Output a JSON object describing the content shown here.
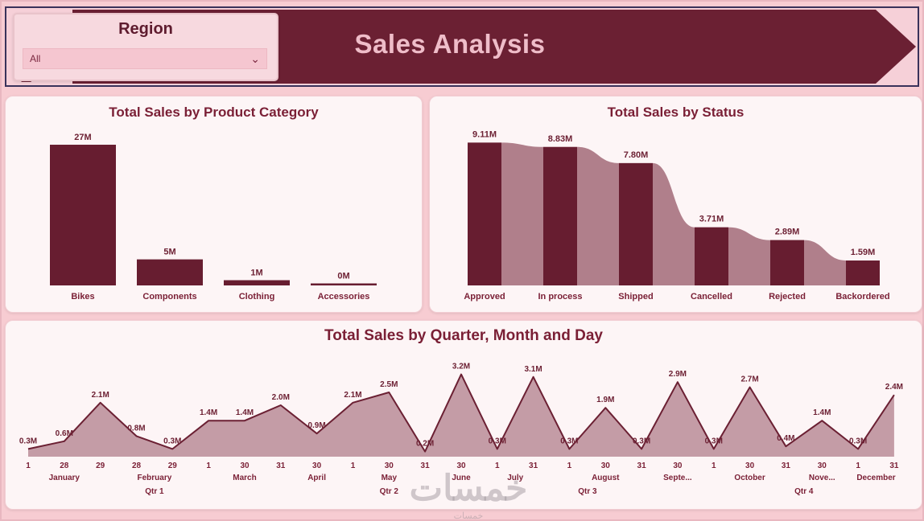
{
  "page": {
    "watermark": "خمسات"
  },
  "header": {
    "title": "Sales Analysis",
    "slicer": {
      "label": "Region",
      "value": "All",
      "chevron_icon": "⌄"
    }
  },
  "colors": {
    "bar": "#671d30",
    "funnel_area": "#b07f8b",
    "area_fill": "#c49ca6",
    "line": "#6b2033",
    "title": "#7a1f35",
    "banner": "#6b2033",
    "banner_text": "#efbdc9"
  },
  "chart_data": [
    {
      "id": "category",
      "type": "bar",
      "title": "Total Sales by Product Category",
      "categories": [
        "Bikes",
        "Components",
        "Clothing",
        "Accessories"
      ],
      "values": [
        27,
        5,
        1,
        0
      ],
      "labels": [
        "27M",
        "5M",
        "1M",
        "0M"
      ],
      "ylabel": "",
      "xlabel": "",
      "ylim": [
        0,
        27
      ],
      "grid": false,
      "legend": "none"
    },
    {
      "id": "status",
      "type": "area",
      "subtype": "funnel-steps-with-bars",
      "title": "Total Sales by Status",
      "categories": [
        "Approved",
        "In process",
        "Shipped",
        "Cancelled",
        "Rejected",
        "Backordered"
      ],
      "values": [
        9.11,
        8.83,
        7.8,
        3.71,
        2.89,
        1.59
      ],
      "labels": [
        "9.11M",
        "8.83M",
        "7.80M",
        "3.71M",
        "2.89M",
        "1.59M"
      ],
      "ylabel": "",
      "xlabel": "",
      "ylim": [
        0,
        9.11
      ],
      "grid": false,
      "legend": "none"
    },
    {
      "id": "daily",
      "type": "area",
      "title": "Total Sales by Quarter, Month and Day",
      "x": [
        "1",
        "28",
        "29",
        "28",
        "29",
        "1",
        "30",
        "31",
        "30",
        "1",
        "30",
        "31",
        "30",
        "1",
        "31",
        "1",
        "30",
        "31",
        "30",
        "1",
        "30",
        "31",
        "30",
        "1",
        "31"
      ],
      "values": [
        0.3,
        0.6,
        2.1,
        0.8,
        0.3,
        1.4,
        1.4,
        2.0,
        0.9,
        2.1,
        2.5,
        0.2,
        3.2,
        0.3,
        3.1,
        0.3,
        1.9,
        0.3,
        2.9,
        0.3,
        2.7,
        0.4,
        1.4,
        0.3,
        2.4
      ],
      "labels": [
        "0.3M",
        "0.6M",
        "2.1M",
        "0.8M",
        "0.3M",
        "1.4M",
        "1.4M",
        "2.0M",
        "0.9M",
        "2.1M",
        "2.5M",
        "0.2M",
        "3.2M",
        "0.3M",
        "3.1M",
        "0.3M",
        "1.9M",
        "0.3M",
        "2.9M",
        "0.3M",
        "2.7M",
        "0.4M",
        "1.4M",
        "0.3M",
        "2.4M"
      ],
      "months": [
        {
          "label": "January",
          "pos": 1
        },
        {
          "label": "February",
          "pos": 3.5
        },
        {
          "label": "March",
          "pos": 6
        },
        {
          "label": "April",
          "pos": 8
        },
        {
          "label": "May",
          "pos": 10
        },
        {
          "label": "June",
          "pos": 12
        },
        {
          "label": "July",
          "pos": 13.5
        },
        {
          "label": "August",
          "pos": 16
        },
        {
          "label": "Septe...",
          "pos": 18
        },
        {
          "label": "October",
          "pos": 20
        },
        {
          "label": "Nove...",
          "pos": 22
        },
        {
          "label": "December",
          "pos": 23.5
        }
      ],
      "quarters": [
        {
          "label": "Qtr 1",
          "pos": 3.5
        },
        {
          "label": "Qtr 2",
          "pos": 10
        },
        {
          "label": "Qtr 3",
          "pos": 15.5
        },
        {
          "label": "Qtr 4",
          "pos": 21.5
        }
      ],
      "ylabel": "",
      "xlabel": "",
      "ylim": [
        0,
        3.4
      ],
      "grid": false,
      "legend": "none"
    }
  ]
}
